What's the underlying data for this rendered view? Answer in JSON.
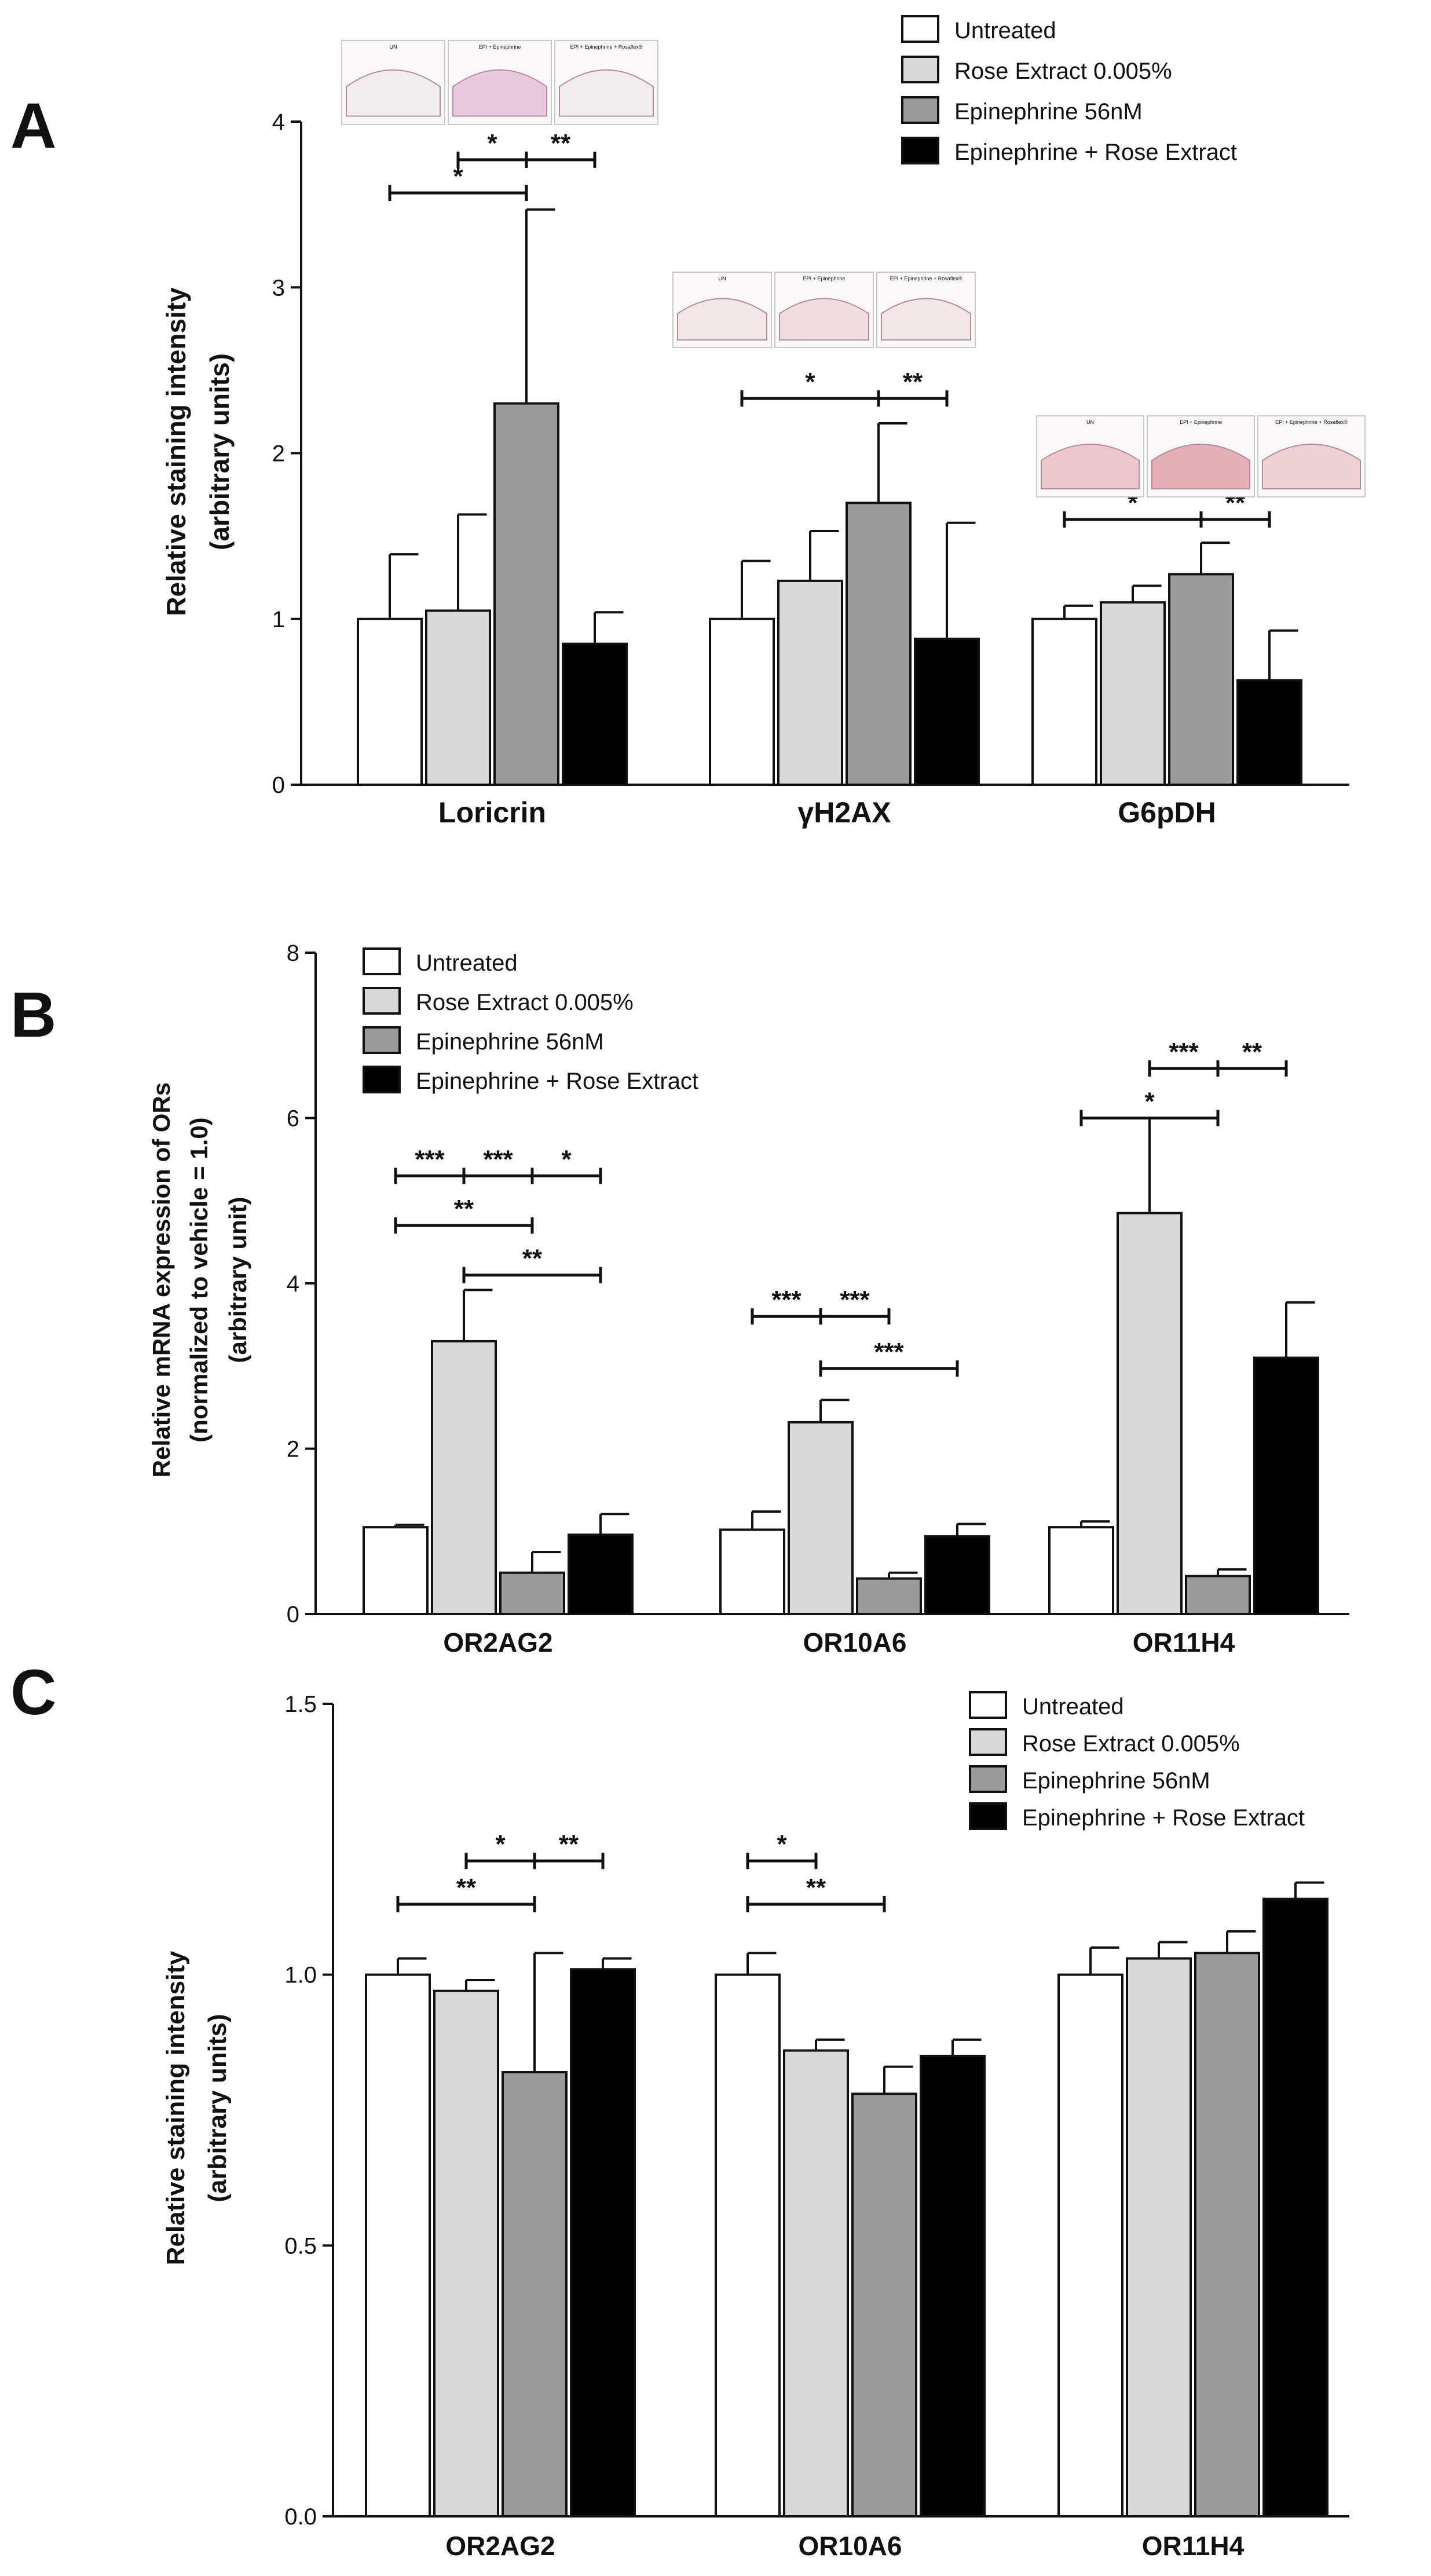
{
  "colors": {
    "untreated": "#ffffff",
    "rose": "#d9d9d9",
    "epi": "#9a9a9a",
    "combo": "#000000",
    "stroke": "#111111"
  },
  "chart_data": [
    {
      "panel": "A",
      "type": "bar",
      "ylabel_lines": [
        "Relative staining intensity",
        "(arbitrary units)"
      ],
      "categories": [
        "Loricrin",
        "γH2AX",
        "G6pDH"
      ],
      "ylim": [
        0,
        4
      ],
      "yticks": [
        0,
        1,
        2,
        3,
        4
      ],
      "ytick_labels": [
        "0",
        "1",
        "2",
        "3",
        "4"
      ],
      "legend": [
        "Untreated",
        "Rose Extract 0.005%",
        "Epinephrine 56nM",
        "Epinephrine + Rose Extract"
      ],
      "series": [
        {
          "name": "Untreated",
          "values": [
            1.0,
            1.0,
            1.0
          ],
          "errors": [
            0.39,
            0.35,
            0.08
          ]
        },
        {
          "name": "Rose Extract 0.005%",
          "values": [
            1.05,
            1.23,
            1.1
          ],
          "errors": [
            0.58,
            0.3,
            0.1
          ]
        },
        {
          "name": "Epinephrine 56nM",
          "values": [
            2.3,
            1.7,
            1.27
          ],
          "errors": [
            1.17,
            0.48,
            0.19
          ]
        },
        {
          "name": "Epinephrine + Rose Extract",
          "values": [
            0.85,
            0.88,
            0.63
          ],
          "errors": [
            0.19,
            0.7,
            0.3
          ]
        }
      ],
      "significance": [
        {
          "group": 0,
          "from": 0,
          "to": 2,
          "y": 3.57,
          "label": "*"
        },
        {
          "group": 0,
          "from": 1,
          "to": 2,
          "y": 3.77,
          "label": "*"
        },
        {
          "group": 0,
          "from": 2,
          "to": 3,
          "y": 3.77,
          "label": "**"
        },
        {
          "group": 1,
          "from": 0,
          "to": 2,
          "y": 2.33,
          "label": "*"
        },
        {
          "group": 1,
          "from": 2,
          "to": 3,
          "y": 2.33,
          "label": "**"
        },
        {
          "group": 2,
          "from": 0,
          "to": 2,
          "y": 1.6,
          "label": "*"
        },
        {
          "group": 2,
          "from": 2,
          "to": 3,
          "y": 1.6,
          "label": "**"
        }
      ],
      "micrograph_labels": [
        [
          "UN",
          "EPI + Epinephrine",
          "EPI + Epinephrine + Rosaflex®"
        ],
        [
          "UN",
          "EPI + Epinephrine",
          "EPI + Epinephrine + Rosaflex®"
        ],
        [
          "UN",
          "EPI + Epinephrine",
          "EPI + Epinephrine + Rosaflex®"
        ]
      ]
    },
    {
      "panel": "B",
      "type": "bar",
      "ylabel_lines": [
        "Relative mRNA expression of ORs",
        "(normalized to vehicle = 1.0)",
        "(arbitrary unit)"
      ],
      "categories": [
        "OR2AG2",
        "OR10A6",
        "OR11H4"
      ],
      "ylim": [
        0,
        8
      ],
      "yticks": [
        0,
        2,
        4,
        6,
        8
      ],
      "ytick_labels": [
        "0",
        "2",
        "4",
        "6",
        "8"
      ],
      "legend": [
        "Untreated",
        "Rose Extract 0.005%",
        "Epinephrine 56nM",
        "Epinephrine + Rose Extract"
      ],
      "series": [
        {
          "name": "Untreated",
          "values": [
            1.05,
            1.02,
            1.05
          ],
          "errors": [
            0.03,
            0.22,
            0.07
          ]
        },
        {
          "name": "Rose Extract 0.005%",
          "values": [
            3.3,
            2.32,
            4.85
          ],
          "errors": [
            0.62,
            0.27,
            1.15
          ]
        },
        {
          "name": "Epinephrine 56nM",
          "values": [
            0.5,
            0.43,
            0.46
          ],
          "errors": [
            0.25,
            0.07,
            0.08
          ]
        },
        {
          "name": "Epinephrine + Rose Extract",
          "values": [
            0.96,
            0.94,
            3.1
          ],
          "errors": [
            0.25,
            0.15,
            0.67
          ]
        }
      ],
      "significance": [
        {
          "group": 0,
          "from": 0,
          "to": 1,
          "y": 5.3,
          "label": "***"
        },
        {
          "group": 0,
          "from": 1,
          "to": 2,
          "y": 5.3,
          "label": "***"
        },
        {
          "group": 0,
          "from": 2,
          "to": 3,
          "y": 5.3,
          "label": "*"
        },
        {
          "group": 0,
          "from": 0,
          "to": 2,
          "y": 4.7,
          "label": "**"
        },
        {
          "group": 0,
          "from": 1,
          "to": 3,
          "y": 4.1,
          "label": "**"
        },
        {
          "group": 1,
          "from": 0,
          "to": 1,
          "y": 3.6,
          "label": "***"
        },
        {
          "group": 1,
          "from": 1,
          "to": 2,
          "y": 3.6,
          "label": "***"
        },
        {
          "group": 1,
          "from": 1,
          "to": 3,
          "y": 2.97,
          "label": "***"
        },
        {
          "group": 2,
          "from": 1,
          "to": 2,
          "y": 6.6,
          "label": "***"
        },
        {
          "group": 2,
          "from": 2,
          "to": 3,
          "y": 6.6,
          "label": "**"
        },
        {
          "group": 2,
          "from": 0,
          "to": 2,
          "y": 6.0,
          "label": "*"
        }
      ]
    },
    {
      "panel": "C",
      "type": "bar",
      "ylabel_lines": [
        "Relative staining intensity",
        "(arbitrary units)"
      ],
      "categories": [
        "OR2AG2",
        "OR10A6",
        "OR11H4"
      ],
      "ylim": [
        0,
        1.5
      ],
      "yticks": [
        0,
        0.5,
        1.0,
        1.5
      ],
      "ytick_labels": [
        "0.0",
        "0.5",
        "1.0",
        "1.5"
      ],
      "legend": [
        "Untreated",
        "Rose Extract 0.005%",
        "Epinephrine 56nM",
        "Epinephrine + Rose Extract"
      ],
      "series": [
        {
          "name": "Untreated",
          "values": [
            1.0,
            1.0,
            1.0
          ],
          "errors": [
            0.03,
            0.04,
            0.05
          ]
        },
        {
          "name": "Rose Extract 0.005%",
          "values": [
            0.97,
            0.86,
            1.03
          ],
          "errors": [
            0.02,
            0.02,
            0.03
          ]
        },
        {
          "name": "Epinephrine 56nM",
          "values": [
            0.82,
            0.78,
            1.04
          ],
          "errors": [
            0.22,
            0.05,
            0.04
          ]
        },
        {
          "name": "Epinephrine + Rose Extract",
          "values": [
            1.01,
            0.85,
            1.14
          ],
          "errors": [
            0.02,
            0.03,
            0.03
          ]
        }
      ],
      "significance": [
        {
          "group": 0,
          "from": 1,
          "to": 2,
          "y": 1.21,
          "label": "*"
        },
        {
          "group": 0,
          "from": 2,
          "to": 3,
          "y": 1.21,
          "label": "**"
        },
        {
          "group": 0,
          "from": 0,
          "to": 2,
          "y": 1.13,
          "label": "**"
        },
        {
          "group": 1,
          "from": 0,
          "to": 1,
          "y": 1.21,
          "label": "*"
        },
        {
          "group": 1,
          "from": 0,
          "to": 2,
          "y": 1.13,
          "label": "**"
        }
      ]
    }
  ]
}
